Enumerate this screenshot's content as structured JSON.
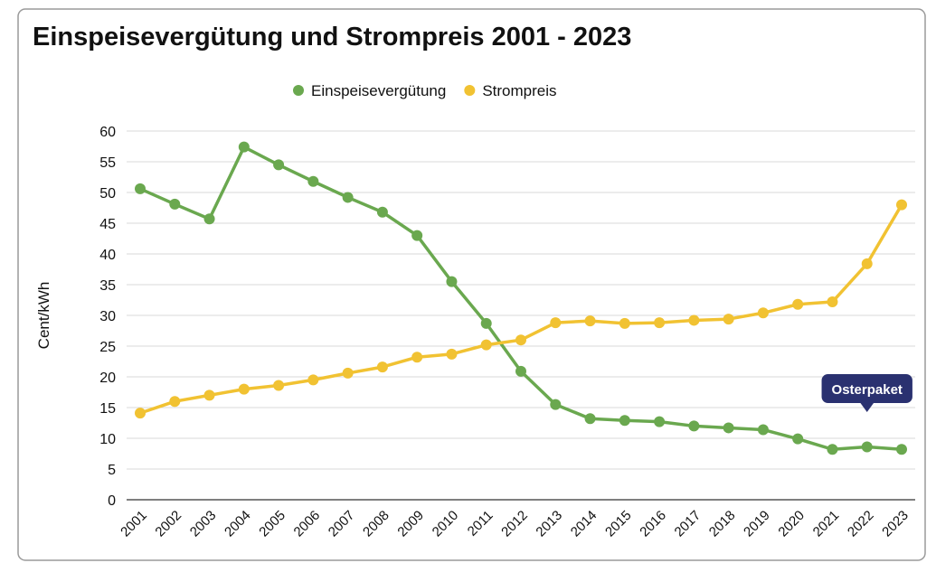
{
  "chart_data": {
    "type": "line",
    "title": "Einspeisevergütung und Strompreis 2001 - 2023",
    "y_label": "Cent/kWh",
    "categories": [
      "2001",
      "2002",
      "2003",
      "2004",
      "2005",
      "2006",
      "2007",
      "2008",
      "2009",
      "2010",
      "2011",
      "2012",
      "2013",
      "2014",
      "2015",
      "2016",
      "2017",
      "2018",
      "2019",
      "2020",
      "2021",
      "2022",
      "2023"
    ],
    "series": [
      {
        "name": "Einspeisevergütung",
        "color": "#6aa84f",
        "values": [
          50.6,
          48.1,
          45.7,
          57.4,
          54.5,
          51.8,
          49.2,
          46.8,
          43.0,
          35.5,
          28.7,
          20.9,
          15.5,
          13.2,
          12.9,
          12.7,
          12.0,
          11.7,
          11.4,
          9.9,
          8.2,
          8.6,
          8.2
        ]
      },
      {
        "name": "Strompreis",
        "color": "#f1c232",
        "values": [
          14.1,
          16.0,
          17.0,
          18.0,
          18.6,
          19.5,
          20.6,
          21.6,
          23.2,
          23.7,
          25.2,
          26.0,
          28.8,
          29.1,
          28.7,
          28.8,
          29.2,
          29.4,
          30.4,
          31.8,
          32.2,
          38.4,
          48.0
        ]
      }
    ],
    "ylim": [
      0,
      60
    ],
    "yticks": [
      0,
      5,
      10,
      15,
      20,
      25,
      30,
      35,
      40,
      45,
      50,
      55,
      60
    ],
    "grid": true,
    "legend": "top",
    "annotations": [
      {
        "text": "Osterpaket",
        "x": "2022"
      }
    ]
  }
}
